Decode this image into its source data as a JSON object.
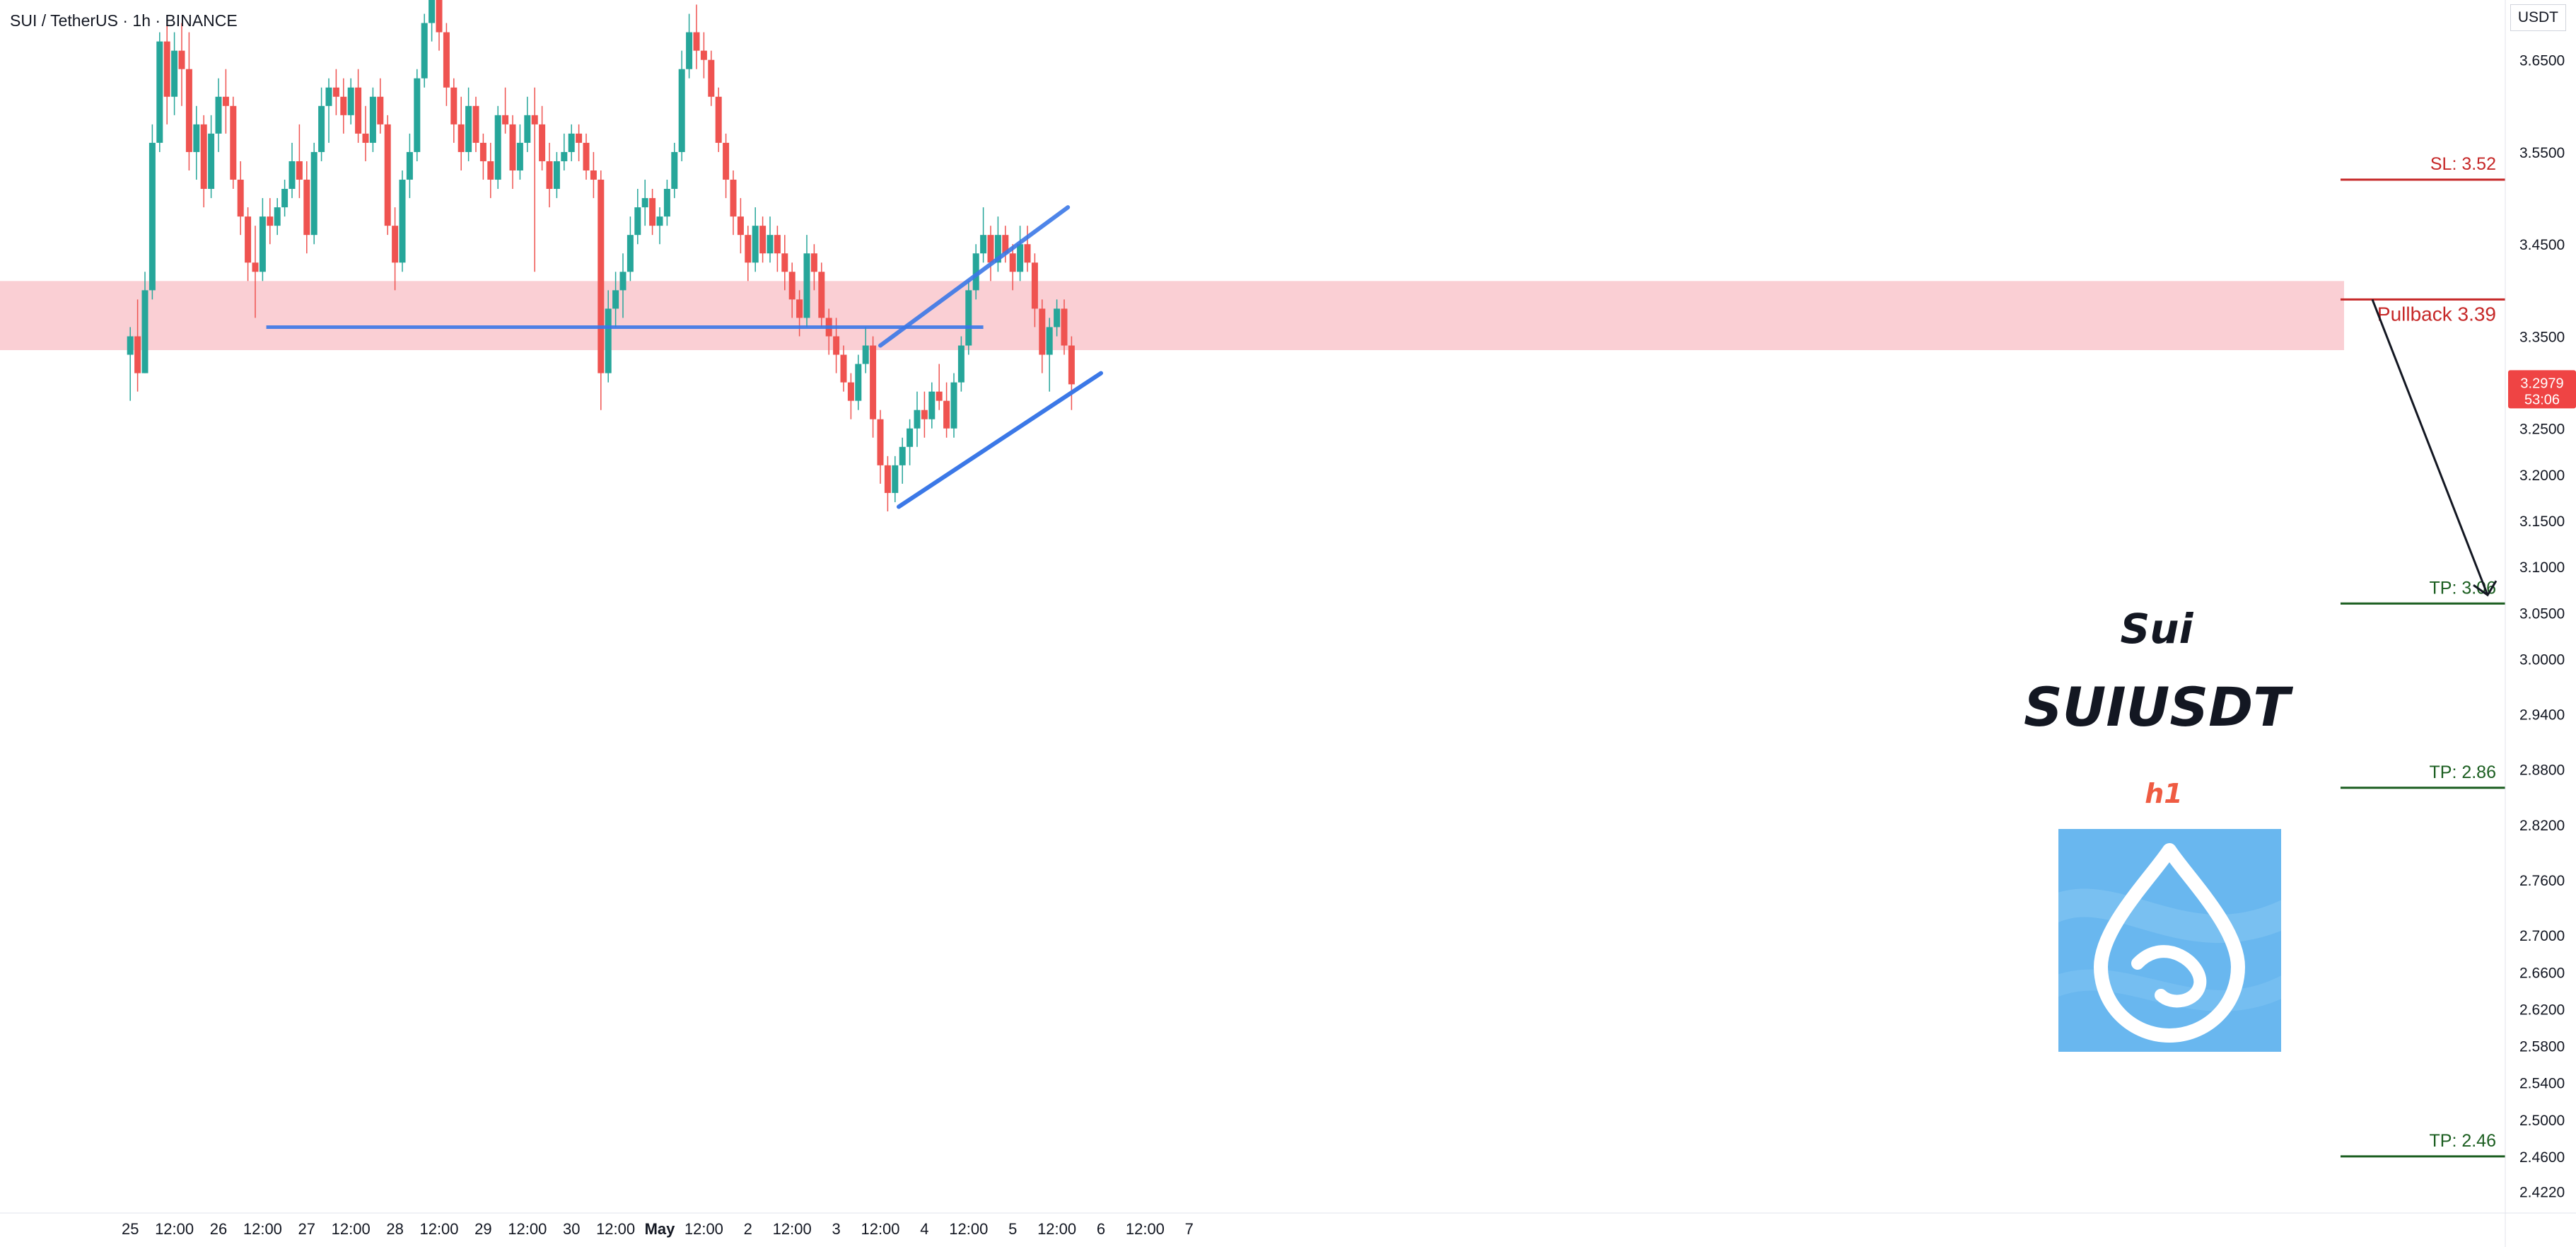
{
  "header": {
    "symbol_line": "SUI / TetherUS · 1h · BINANCE",
    "currency": "USDT"
  },
  "overlay": {
    "name": "Sui",
    "ticker": "SUIUSDT",
    "timeframe": "h1"
  },
  "colors": {
    "bull": "#26a69a",
    "bear": "#ef5350",
    "zone_fill": "#f9c7cc",
    "trendline": "#3b78e7",
    "sl": "#c62828",
    "tp": "#1b5e20",
    "price_tag": "#ef4444",
    "logo_bg": "#69b7ef"
  },
  "chart_data": {
    "type": "candlestick",
    "timeframe": "1h",
    "ylim": [
      2.41,
      3.715
    ],
    "y_ticks": [
      "3.6500",
      "3.5500",
      "3.4500",
      "3.3500",
      "3.2500",
      "3.2000",
      "3.1500",
      "3.1000",
      "3.0500",
      "3.0000",
      "2.9400",
      "2.8800",
      "2.8200",
      "2.7600",
      "2.7000",
      "2.6600",
      "2.6200",
      "2.5800",
      "2.5400",
      "2.5000",
      "2.4600",
      "2.4220"
    ],
    "x_ticks": [
      {
        "label": "25",
        "t": -24
      },
      {
        "label": "12:00",
        "t": -12
      },
      {
        "label": "26",
        "t": 0
      },
      {
        "label": "12:00",
        "t": 12
      },
      {
        "label": "27",
        "t": 24
      },
      {
        "label": "12:00",
        "t": 36
      },
      {
        "label": "28",
        "t": 48
      },
      {
        "label": "12:00",
        "t": 60
      },
      {
        "label": "29",
        "t": 72
      },
      {
        "label": "12:00",
        "t": 84
      },
      {
        "label": "30",
        "t": 96
      },
      {
        "label": "12:00",
        "t": 108
      },
      {
        "label": "May",
        "t": 120,
        "bold": true
      },
      {
        "label": "12:00",
        "t": 132
      },
      {
        "label": "2",
        "t": 144
      },
      {
        "label": "12:00",
        "t": 156
      },
      {
        "label": "3",
        "t": 168
      },
      {
        "label": "12:00",
        "t": 180
      },
      {
        "label": "4",
        "t": 192
      },
      {
        "label": "12:00",
        "t": 204
      },
      {
        "label": "5",
        "t": 216
      },
      {
        "label": "12:00",
        "t": 228
      },
      {
        "label": "6",
        "t": 240
      },
      {
        "label": "12:00",
        "t": 252
      },
      {
        "label": "7",
        "t": 264
      }
    ],
    "candles": [
      {
        "t": -24,
        "o": 3.33,
        "h": 3.36,
        "l": 3.28,
        "c": 3.35
      },
      {
        "t": -22,
        "o": 3.35,
        "h": 3.39,
        "l": 3.29,
        "c": 3.31
      },
      {
        "t": -20,
        "o": 3.31,
        "h": 3.42,
        "l": 3.31,
        "c": 3.4
      },
      {
        "t": -18,
        "o": 3.4,
        "h": 3.58,
        "l": 3.39,
        "c": 3.56
      },
      {
        "t": -16,
        "o": 3.56,
        "h": 3.68,
        "l": 3.55,
        "c": 3.67
      },
      {
        "t": -14,
        "o": 3.67,
        "h": 3.69,
        "l": 3.58,
        "c": 3.61
      },
      {
        "t": -12,
        "o": 3.61,
        "h": 3.68,
        "l": 3.59,
        "c": 3.66
      },
      {
        "t": -10,
        "o": 3.66,
        "h": 3.69,
        "l": 3.6,
        "c": 3.64
      },
      {
        "t": -8,
        "o": 3.64,
        "h": 3.68,
        "l": 3.53,
        "c": 3.55
      },
      {
        "t": -6,
        "o": 3.55,
        "h": 3.6,
        "l": 3.52,
        "c": 3.58
      },
      {
        "t": -4,
        "o": 3.58,
        "h": 3.59,
        "l": 3.49,
        "c": 3.51
      },
      {
        "t": -2,
        "o": 3.51,
        "h": 3.59,
        "l": 3.5,
        "c": 3.57
      },
      {
        "t": 0,
        "o": 3.57,
        "h": 3.63,
        "l": 3.55,
        "c": 3.61
      },
      {
        "t": 2,
        "o": 3.61,
        "h": 3.64,
        "l": 3.57,
        "c": 3.6
      },
      {
        "t": 4,
        "o": 3.6,
        "h": 3.61,
        "l": 3.51,
        "c": 3.52
      },
      {
        "t": 6,
        "o": 3.52,
        "h": 3.54,
        "l": 3.46,
        "c": 3.48
      },
      {
        "t": 8,
        "o": 3.48,
        "h": 3.49,
        "l": 3.41,
        "c": 3.43
      },
      {
        "t": 10,
        "o": 3.43,
        "h": 3.47,
        "l": 3.37,
        "c": 3.42
      },
      {
        "t": 12,
        "o": 3.42,
        "h": 3.5,
        "l": 3.41,
        "c": 3.48
      },
      {
        "t": 14,
        "o": 3.48,
        "h": 3.5,
        "l": 3.45,
        "c": 3.47
      },
      {
        "t": 16,
        "o": 3.47,
        "h": 3.5,
        "l": 3.46,
        "c": 3.49
      },
      {
        "t": 18,
        "o": 3.49,
        "h": 3.52,
        "l": 3.48,
        "c": 3.51
      },
      {
        "t": 20,
        "o": 3.51,
        "h": 3.56,
        "l": 3.5,
        "c": 3.54
      },
      {
        "t": 22,
        "o": 3.54,
        "h": 3.58,
        "l": 3.5,
        "c": 3.52
      },
      {
        "t": 24,
        "o": 3.52,
        "h": 3.54,
        "l": 3.44,
        "c": 3.46
      },
      {
        "t": 26,
        "o": 3.46,
        "h": 3.56,
        "l": 3.45,
        "c": 3.55
      },
      {
        "t": 28,
        "o": 3.55,
        "h": 3.62,
        "l": 3.54,
        "c": 3.6
      },
      {
        "t": 30,
        "o": 3.6,
        "h": 3.63,
        "l": 3.56,
        "c": 3.62
      },
      {
        "t": 32,
        "o": 3.62,
        "h": 3.64,
        "l": 3.59,
        "c": 3.61
      },
      {
        "t": 34,
        "o": 3.61,
        "h": 3.63,
        "l": 3.57,
        "c": 3.59
      },
      {
        "t": 36,
        "o": 3.59,
        "h": 3.63,
        "l": 3.58,
        "c": 3.62
      },
      {
        "t": 38,
        "o": 3.62,
        "h": 3.64,
        "l": 3.56,
        "c": 3.57
      },
      {
        "t": 40,
        "o": 3.57,
        "h": 3.6,
        "l": 3.54,
        "c": 3.56
      },
      {
        "t": 42,
        "o": 3.56,
        "h": 3.62,
        "l": 3.55,
        "c": 3.61
      },
      {
        "t": 44,
        "o": 3.61,
        "h": 3.63,
        "l": 3.57,
        "c": 3.58
      },
      {
        "t": 46,
        "o": 3.58,
        "h": 3.59,
        "l": 3.46,
        "c": 3.47
      },
      {
        "t": 48,
        "o": 3.47,
        "h": 3.49,
        "l": 3.4,
        "c": 3.43
      },
      {
        "t": 50,
        "o": 3.43,
        "h": 3.53,
        "l": 3.42,
        "c": 3.52
      },
      {
        "t": 52,
        "o": 3.52,
        "h": 3.57,
        "l": 3.5,
        "c": 3.55
      },
      {
        "t": 54,
        "o": 3.55,
        "h": 3.64,
        "l": 3.54,
        "c": 3.63
      },
      {
        "t": 56,
        "o": 3.63,
        "h": 3.7,
        "l": 3.62,
        "c": 3.69
      },
      {
        "t": 58,
        "o": 3.69,
        "h": 3.76,
        "l": 3.67,
        "c": 3.74
      },
      {
        "t": 60,
        "o": 3.74,
        "h": 3.77,
        "l": 3.66,
        "c": 3.68
      },
      {
        "t": 62,
        "o": 3.68,
        "h": 3.69,
        "l": 3.6,
        "c": 3.62
      },
      {
        "t": 64,
        "o": 3.62,
        "h": 3.63,
        "l": 3.56,
        "c": 3.58
      },
      {
        "t": 66,
        "o": 3.58,
        "h": 3.61,
        "l": 3.53,
        "c": 3.55
      },
      {
        "t": 68,
        "o": 3.55,
        "h": 3.62,
        "l": 3.54,
        "c": 3.6
      },
      {
        "t": 70,
        "o": 3.6,
        "h": 3.61,
        "l": 3.55,
        "c": 3.56
      },
      {
        "t": 72,
        "o": 3.56,
        "h": 3.57,
        "l": 3.52,
        "c": 3.54
      },
      {
        "t": 74,
        "o": 3.54,
        "h": 3.56,
        "l": 3.5,
        "c": 3.52
      },
      {
        "t": 76,
        "o": 3.52,
        "h": 3.6,
        "l": 3.51,
        "c": 3.59
      },
      {
        "t": 78,
        "o": 3.59,
        "h": 3.62,
        "l": 3.57,
        "c": 3.58
      },
      {
        "t": 80,
        "o": 3.58,
        "h": 3.59,
        "l": 3.51,
        "c": 3.53
      },
      {
        "t": 82,
        "o": 3.53,
        "h": 3.58,
        "l": 3.52,
        "c": 3.56
      },
      {
        "t": 84,
        "o": 3.56,
        "h": 3.61,
        "l": 3.55,
        "c": 3.59
      },
      {
        "t": 86,
        "o": 3.59,
        "h": 3.62,
        "l": 3.42,
        "c": 3.58
      },
      {
        "t": 88,
        "o": 3.58,
        "h": 3.6,
        "l": 3.53,
        "c": 3.54
      },
      {
        "t": 90,
        "o": 3.54,
        "h": 3.56,
        "l": 3.49,
        "c": 3.51
      },
      {
        "t": 92,
        "o": 3.51,
        "h": 3.55,
        "l": 3.5,
        "c": 3.54
      },
      {
        "t": 94,
        "o": 3.54,
        "h": 3.57,
        "l": 3.53,
        "c": 3.55
      },
      {
        "t": 96,
        "o": 3.55,
        "h": 3.58,
        "l": 3.54,
        "c": 3.57
      },
      {
        "t": 98,
        "o": 3.57,
        "h": 3.58,
        "l": 3.54,
        "c": 3.56
      },
      {
        "t": 100,
        "o": 3.56,
        "h": 3.57,
        "l": 3.52,
        "c": 3.53
      },
      {
        "t": 102,
        "o": 3.53,
        "h": 3.55,
        "l": 3.5,
        "c": 3.52
      },
      {
        "t": 104,
        "o": 3.52,
        "h": 3.53,
        "l": 3.27,
        "c": 3.31
      },
      {
        "t": 106,
        "o": 3.31,
        "h": 3.4,
        "l": 3.3,
        "c": 3.38
      },
      {
        "t": 108,
        "o": 3.38,
        "h": 3.42,
        "l": 3.36,
        "c": 3.4
      },
      {
        "t": 110,
        "o": 3.4,
        "h": 3.44,
        "l": 3.37,
        "c": 3.42
      },
      {
        "t": 112,
        "o": 3.42,
        "h": 3.48,
        "l": 3.41,
        "c": 3.46
      },
      {
        "t": 114,
        "o": 3.46,
        "h": 3.51,
        "l": 3.45,
        "c": 3.49
      },
      {
        "t": 116,
        "o": 3.49,
        "h": 3.52,
        "l": 3.47,
        "c": 3.5
      },
      {
        "t": 118,
        "o": 3.5,
        "h": 3.51,
        "l": 3.46,
        "c": 3.47
      },
      {
        "t": 120,
        "o": 3.47,
        "h": 3.49,
        "l": 3.45,
        "c": 3.48
      },
      {
        "t": 122,
        "o": 3.48,
        "h": 3.52,
        "l": 3.47,
        "c": 3.51
      },
      {
        "t": 124,
        "o": 3.51,
        "h": 3.56,
        "l": 3.5,
        "c": 3.55
      },
      {
        "t": 126,
        "o": 3.55,
        "h": 3.66,
        "l": 3.54,
        "c": 3.64
      },
      {
        "t": 128,
        "o": 3.64,
        "h": 3.7,
        "l": 3.63,
        "c": 3.68
      },
      {
        "t": 130,
        "o": 3.68,
        "h": 3.71,
        "l": 3.64,
        "c": 3.66
      },
      {
        "t": 132,
        "o": 3.66,
        "h": 3.68,
        "l": 3.63,
        "c": 3.65
      },
      {
        "t": 134,
        "o": 3.65,
        "h": 3.66,
        "l": 3.6,
        "c": 3.61
      },
      {
        "t": 136,
        "o": 3.61,
        "h": 3.62,
        "l": 3.55,
        "c": 3.56
      },
      {
        "t": 138,
        "o": 3.56,
        "h": 3.57,
        "l": 3.5,
        "c": 3.52
      },
      {
        "t": 140,
        "o": 3.52,
        "h": 3.53,
        "l": 3.46,
        "c": 3.48
      },
      {
        "t": 142,
        "o": 3.48,
        "h": 3.5,
        "l": 3.44,
        "c": 3.46
      },
      {
        "t": 144,
        "o": 3.46,
        "h": 3.47,
        "l": 3.41,
        "c": 3.43
      },
      {
        "t": 146,
        "o": 3.43,
        "h": 3.49,
        "l": 3.42,
        "c": 3.47
      },
      {
        "t": 148,
        "o": 3.47,
        "h": 3.48,
        "l": 3.43,
        "c": 3.44
      },
      {
        "t": 150,
        "o": 3.44,
        "h": 3.48,
        "l": 3.43,
        "c": 3.46
      },
      {
        "t": 152,
        "o": 3.46,
        "h": 3.47,
        "l": 3.42,
        "c": 3.44
      },
      {
        "t": 154,
        "o": 3.44,
        "h": 3.46,
        "l": 3.4,
        "c": 3.42
      },
      {
        "t": 156,
        "o": 3.42,
        "h": 3.43,
        "l": 3.37,
        "c": 3.39
      },
      {
        "t": 158,
        "o": 3.39,
        "h": 3.4,
        "l": 3.35,
        "c": 3.37
      },
      {
        "t": 160,
        "o": 3.37,
        "h": 3.46,
        "l": 3.36,
        "c": 3.44
      },
      {
        "t": 162,
        "o": 3.44,
        "h": 3.45,
        "l": 3.4,
        "c": 3.42
      },
      {
        "t": 164,
        "o": 3.42,
        "h": 3.43,
        "l": 3.36,
        "c": 3.37
      },
      {
        "t": 166,
        "o": 3.37,
        "h": 3.38,
        "l": 3.33,
        "c": 3.35
      },
      {
        "t": 168,
        "o": 3.35,
        "h": 3.37,
        "l": 3.31,
        "c": 3.33
      },
      {
        "t": 170,
        "o": 3.33,
        "h": 3.34,
        "l": 3.29,
        "c": 3.3
      },
      {
        "t": 172,
        "o": 3.3,
        "h": 3.31,
        "l": 3.26,
        "c": 3.28
      },
      {
        "t": 174,
        "o": 3.28,
        "h": 3.33,
        "l": 3.27,
        "c": 3.32
      },
      {
        "t": 176,
        "o": 3.32,
        "h": 3.36,
        "l": 3.31,
        "c": 3.34
      },
      {
        "t": 178,
        "o": 3.34,
        "h": 3.35,
        "l": 3.24,
        "c": 3.26
      },
      {
        "t": 180,
        "o": 3.26,
        "h": 3.27,
        "l": 3.19,
        "c": 3.21
      },
      {
        "t": 182,
        "o": 3.21,
        "h": 3.22,
        "l": 3.16,
        "c": 3.18
      },
      {
        "t": 184,
        "o": 3.18,
        "h": 3.22,
        "l": 3.17,
        "c": 3.21
      },
      {
        "t": 186,
        "o": 3.21,
        "h": 3.24,
        "l": 3.19,
        "c": 3.23
      },
      {
        "t": 188,
        "o": 3.23,
        "h": 3.26,
        "l": 3.21,
        "c": 3.25
      },
      {
        "t": 190,
        "o": 3.25,
        "h": 3.29,
        "l": 3.23,
        "c": 3.27
      },
      {
        "t": 192,
        "o": 3.27,
        "h": 3.29,
        "l": 3.24,
        "c": 3.26
      },
      {
        "t": 194,
        "o": 3.26,
        "h": 3.3,
        "l": 3.25,
        "c": 3.29
      },
      {
        "t": 196,
        "o": 3.29,
        "h": 3.32,
        "l": 3.27,
        "c": 3.28
      },
      {
        "t": 198,
        "o": 3.28,
        "h": 3.3,
        "l": 3.24,
        "c": 3.25
      },
      {
        "t": 200,
        "o": 3.25,
        "h": 3.31,
        "l": 3.24,
        "c": 3.3
      },
      {
        "t": 202,
        "o": 3.3,
        "h": 3.35,
        "l": 3.29,
        "c": 3.34
      },
      {
        "t": 204,
        "o": 3.34,
        "h": 3.41,
        "l": 3.33,
        "c": 3.4
      },
      {
        "t": 206,
        "o": 3.4,
        "h": 3.45,
        "l": 3.39,
        "c": 3.44
      },
      {
        "t": 208,
        "o": 3.44,
        "h": 3.49,
        "l": 3.43,
        "c": 3.46
      },
      {
        "t": 210,
        "o": 3.46,
        "h": 3.47,
        "l": 3.41,
        "c": 3.43
      },
      {
        "t": 212,
        "o": 3.43,
        "h": 3.48,
        "l": 3.42,
        "c": 3.46
      },
      {
        "t": 214,
        "o": 3.46,
        "h": 3.47,
        "l": 3.43,
        "c": 3.44
      },
      {
        "t": 216,
        "o": 3.44,
        "h": 3.45,
        "l": 3.4,
        "c": 3.42
      },
      {
        "t": 218,
        "o": 3.42,
        "h": 3.47,
        "l": 3.41,
        "c": 3.45
      },
      {
        "t": 220,
        "o": 3.45,
        "h": 3.47,
        "l": 3.42,
        "c": 3.43
      },
      {
        "t": 222,
        "o": 3.43,
        "h": 3.44,
        "l": 3.36,
        "c": 3.38
      },
      {
        "t": 224,
        "o": 3.38,
        "h": 3.39,
        "l": 3.31,
        "c": 3.33
      },
      {
        "t": 226,
        "o": 3.33,
        "h": 3.37,
        "l": 3.29,
        "c": 3.36
      },
      {
        "t": 228,
        "o": 3.36,
        "h": 3.39,
        "l": 3.35,
        "c": 3.38
      },
      {
        "t": 230,
        "o": 3.38,
        "h": 3.39,
        "l": 3.33,
        "c": 3.34
      },
      {
        "t": 232,
        "o": 3.34,
        "h": 3.35,
        "l": 3.27,
        "c": 3.2979
      }
    ],
    "annotations": {
      "resistance_zone": [
        3.335,
        3.41
      ],
      "horizontal_line": {
        "from_t": 13,
        "to_t": 208,
        "price": 3.36
      },
      "channel_upper": {
        "t1": 180,
        "p1": 3.34,
        "t2": 231,
        "p2": 3.49
      },
      "channel_lower": {
        "t1": 185,
        "p1": 3.165,
        "t2": 240,
        "p2": 3.31
      },
      "projection_arrow": {
        "from_price": 3.39,
        "to_price": 3.06
      },
      "levels": [
        {
          "label": "SL: 3.52",
          "price": 3.52,
          "kind": "sl"
        },
        {
          "label": "Pullback 3.39",
          "price": 3.39,
          "kind": "pullback"
        },
        {
          "label": "TP: 3.06",
          "price": 3.06,
          "kind": "tp"
        },
        {
          "label": "TP: 2.86",
          "price": 2.86,
          "kind": "tp"
        },
        {
          "label": "TP: 2.46",
          "price": 2.46,
          "kind": "tp"
        }
      ],
      "last_price": {
        "value": "3.2979",
        "countdown": "53:06",
        "price": 3.2979
      }
    }
  }
}
